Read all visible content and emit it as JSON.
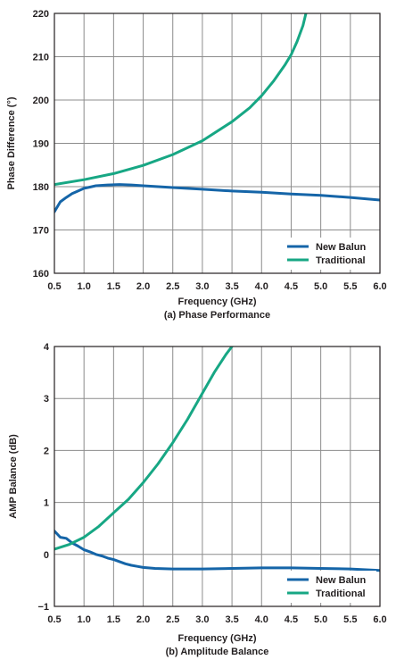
{
  "chart_data": [
    {
      "type": "line",
      "caption": "(a) Phase Performance",
      "xlabel": "Frequency (GHz)",
      "ylabel": "Phase Difference (°)",
      "xlim": [
        0.5,
        6.0
      ],
      "ylim": [
        160,
        220
      ],
      "xticks": [
        "0.5",
        "1.0",
        "1.5",
        "2.0",
        "2.5",
        "3.0",
        "3.5",
        "4.0",
        "4.5",
        "5.0",
        "5.5",
        "6.0"
      ],
      "yticks": [
        "160",
        "170",
        "180",
        "190",
        "200",
        "210",
        "220"
      ],
      "grid": true,
      "legend_position": "bottom-right",
      "series": [
        {
          "name": "New Balun",
          "color": "#1565a8",
          "x": [
            0.5,
            0.6,
            0.7,
            0.8,
            0.9,
            1.0,
            1.1,
            1.2,
            1.4,
            1.6,
            1.8,
            2.0,
            2.5,
            3.0,
            3.5,
            4.0,
            4.5,
            5.0,
            5.5,
            6.0
          ],
          "y": [
            174.2,
            176.5,
            177.5,
            178.4,
            179.0,
            179.6,
            179.9,
            180.2,
            180.4,
            180.5,
            180.4,
            180.2,
            179.8,
            179.4,
            179.0,
            178.7,
            178.3,
            178.0,
            177.5,
            176.9
          ]
        },
        {
          "name": "Traditional",
          "color": "#17a784",
          "x": [
            0.5,
            1.0,
            1.5,
            2.0,
            2.5,
            3.0,
            3.5,
            3.8,
            4.0,
            4.2,
            4.4,
            4.5,
            4.6,
            4.7,
            4.75
          ],
          "y": [
            180.5,
            181.6,
            183.0,
            184.9,
            187.4,
            190.6,
            195.0,
            198.2,
            201.0,
            204.3,
            208.2,
            210.5,
            213.5,
            217.2,
            220.0
          ]
        }
      ]
    },
    {
      "type": "line",
      "caption": "(b) Amplitude Balance",
      "xlabel": "Frequency (GHz)",
      "ylabel": "AMP Balance (dB)",
      "xlim": [
        0.5,
        6.0
      ],
      "ylim": [
        -1,
        4
      ],
      "xticks": [
        "0.5",
        "1.0",
        "1.5",
        "2.0",
        "2.5",
        "3.0",
        "3.5",
        "4.0",
        "4.5",
        "5.0",
        "5.5",
        "6.0"
      ],
      "yticks": [
        "−1",
        "0",
        "1",
        "2",
        "3",
        "4"
      ],
      "grid": true,
      "legend_position": "bottom-right",
      "series": [
        {
          "name": "New Balun",
          "color": "#1565a8",
          "x": [
            0.5,
            0.6,
            0.7,
            0.8,
            0.9,
            1.0,
            1.1,
            1.2,
            1.3,
            1.4,
            1.5,
            1.6,
            1.7,
            1.8,
            1.9,
            2.0,
            2.2,
            2.5,
            3.0,
            3.5,
            4.0,
            4.5,
            5.0,
            5.5,
            6.0
          ],
          "y": [
            0.45,
            0.33,
            0.31,
            0.22,
            0.16,
            0.09,
            0.05,
            0.0,
            -0.03,
            -0.07,
            -0.1,
            -0.14,
            -0.18,
            -0.21,
            -0.23,
            -0.25,
            -0.27,
            -0.28,
            -0.28,
            -0.27,
            -0.26,
            -0.26,
            -0.27,
            -0.28,
            -0.31
          ]
        },
        {
          "name": "Traditional",
          "color": "#17a784",
          "x": [
            0.5,
            0.75,
            1.0,
            1.25,
            1.5,
            1.75,
            2.0,
            2.25,
            2.5,
            2.75,
            3.0,
            3.2,
            3.4,
            3.5
          ],
          "y": [
            0.1,
            0.19,
            0.33,
            0.54,
            0.8,
            1.06,
            1.38,
            1.74,
            2.15,
            2.6,
            3.1,
            3.5,
            3.85,
            4.0
          ]
        }
      ]
    }
  ]
}
